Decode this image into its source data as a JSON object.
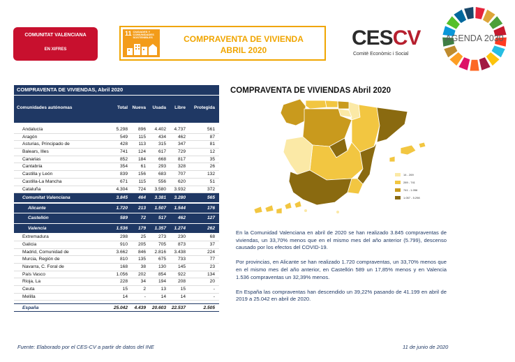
{
  "header": {
    "badge_line1": "COMUNITAT VALENCIANA",
    "badge_line2": "EN XIFRES",
    "ods_number": "11",
    "ods_label": "CIUDADES Y COMUNIDADES SOSTENIBLES",
    "title_line1": "COMPRAVENTA DE VIVIENDA",
    "title_line2": "ABRIL 2020",
    "ces_logo_text_main": "CES",
    "ces_logo_text_accent": "CV",
    "ces_subtitle": "Comitè Econòmic i Social",
    "agenda_logo_text": "AGENDA 2030"
  },
  "table": {
    "caption": "COMPRAVENTA DE VIVIENDAS, Abril 2020",
    "columns": [
      "Comunidades autónomas",
      "Total",
      "Nueva",
      "Usada",
      "Libre",
      "Protegida"
    ],
    "rows_top": [
      [
        "Andalucía",
        "5.298",
        "896",
        "4.402",
        "4.737",
        "561"
      ],
      [
        "Aragón",
        "549",
        "115",
        "434",
        "462",
        "87"
      ],
      [
        "Asturias, Principado de",
        "428",
        "113",
        "315",
        "347",
        "81"
      ],
      [
        "Balears, Illes",
        "741",
        "124",
        "617",
        "729",
        "12"
      ],
      [
        "Canarias",
        "852",
        "184",
        "668",
        "817",
        "35"
      ],
      [
        "Cantabria",
        "354",
        "61",
        "293",
        "328",
        "26"
      ],
      [
        "Castilla y León",
        "839",
        "156",
        "683",
        "707",
        "132"
      ],
      [
        "Castilla-La Mancha",
        "671",
        "115",
        "556",
        "620",
        "51"
      ],
      [
        "Cataluña",
        "4.304",
        "724",
        "3.580",
        "3.932",
        "372"
      ]
    ],
    "row_cv": [
      "Comunitat Valenciana",
      "3.845",
      "464",
      "3.381",
      "3.280",
      "565"
    ],
    "rows_provinces": [
      [
        "Alicante",
        "1.720",
        "213",
        "1.507",
        "1.544",
        "176"
      ],
      [
        "Castellón",
        "589",
        "72",
        "517",
        "462",
        "127"
      ],
      [
        "Valencia",
        "1.536",
        "179",
        "1.357",
        "1.274",
        "262"
      ]
    ],
    "rows_bottom": [
      [
        "Extremadura",
        "298",
        "25",
        "273",
        "230",
        "68"
      ],
      [
        "Galicia",
        "910",
        "205",
        "705",
        "873",
        "37"
      ],
      [
        "Madrid, Comunidad de",
        "3.662",
        "846",
        "2.816",
        "3.438",
        "224"
      ],
      [
        "Murcia, Región de",
        "810",
        "135",
        "675",
        "733",
        "77"
      ],
      [
        "Navarra, C. Foral de",
        "168",
        "38",
        "130",
        "145",
        "23"
      ],
      [
        "País Vasco",
        "1.056",
        "202",
        "854",
        "922",
        "134"
      ],
      [
        "Rioja, La",
        "228",
        "34",
        "194",
        "208",
        "20"
      ],
      [
        "Ceuta",
        "15",
        "2",
        "13",
        "15",
        "-"
      ],
      [
        "Melilla",
        "14",
        "-",
        "14",
        "14",
        "-"
      ]
    ],
    "row_total": [
      "España",
      "25.042",
      "4.439",
      "20.603",
      "22.537",
      "2.505"
    ]
  },
  "map": {
    "title": "COMPRAVENTA DE VIVIENDAS Abril 2020",
    "legend": [
      {
        "label": "14 - 269",
        "color": "#fbe9a6"
      },
      {
        "label": "289 - 741",
        "color": "#f2c641"
      },
      {
        "label": "741 - 1.056",
        "color": "#c99a1d"
      },
      {
        "label": "1.057 - 5.298",
        "color": "#8a6a10"
      }
    ]
  },
  "text": {
    "p1": "En la Comunidad Valenciana en abril de 2020 se han realizado 3.845 compraventas de viviendas, un 33,70% menos que en el mismo mes del año anterior (5.799), descenso causado por los efectos del COVID-19.",
    "p2": "Por provincias, en Alicante se han realizado 1.720 compraventas, un 33,70% menos que en el mismo mes del año anterior, en Castellón 589 un 17,85% menos y en Valencia 1.536 compraventas un 32,39% menos.",
    "p3": "En España las compraventas han descendido un 39,22% pasando de 41.199 en abril de 2019 a 25.042 en abril de 2020."
  },
  "footer": {
    "source": "Fuente: Elaborado por el CES-CV a partir de datos del INE",
    "date": "11 de junio de 2020"
  }
}
